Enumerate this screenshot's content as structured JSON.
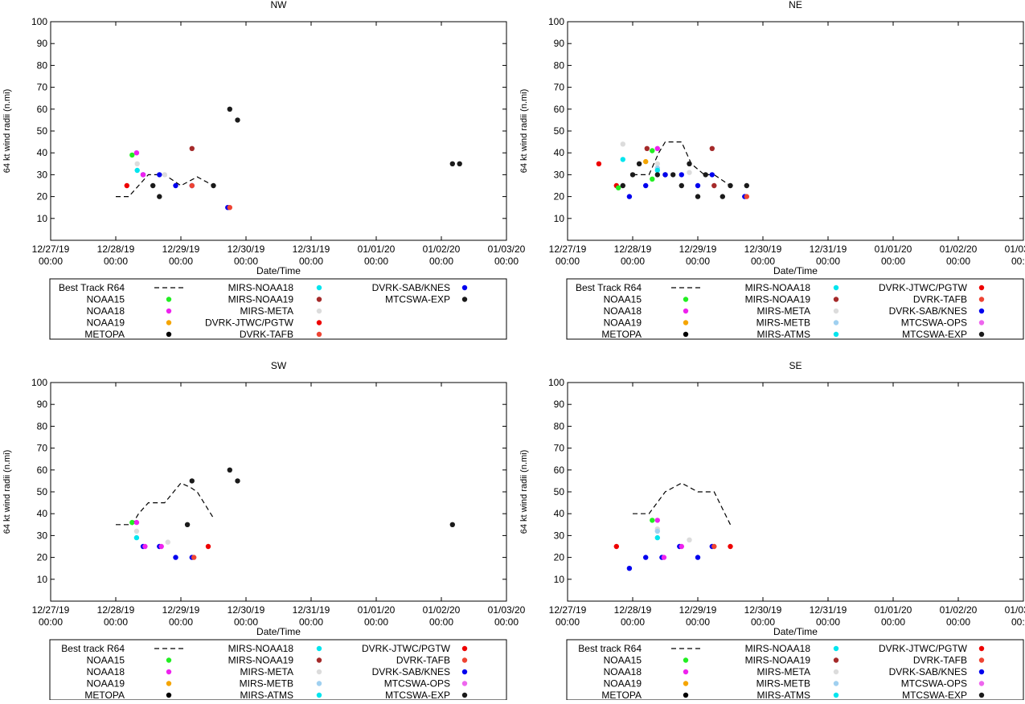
{
  "meta": {
    "ylabel": "64 kt wind radii (n.mi)",
    "xlabel": "Date/Time"
  },
  "x_ticks": [
    {
      "date": "12/27/19",
      "time": "00:00",
      "day": 0
    },
    {
      "date": "12/28/19",
      "time": "00:00",
      "day": 1
    },
    {
      "date": "12/29/19",
      "time": "00:00",
      "day": 2
    },
    {
      "date": "12/30/19",
      "time": "00:00",
      "day": 3
    },
    {
      "date": "12/31/19",
      "time": "00:00",
      "day": 4
    },
    {
      "date": "01/01/20",
      "time": "00:00",
      "day": 5
    },
    {
      "date": "01/02/20",
      "time": "00:00",
      "day": 6
    },
    {
      "date": "01/03/20",
      "time": "00:00",
      "day": 7
    }
  ],
  "chart_data": [
    {
      "type": "scatter",
      "title": "NW",
      "xlabel": "Date/Time",
      "ylabel": "64 kt wind radii (n.mi)",
      "xlim": [
        0,
        7
      ],
      "ylim": [
        0,
        100
      ],
      "yticks": [
        10,
        20,
        30,
        40,
        50,
        60,
        70,
        80,
        90,
        100
      ],
      "legend": [
        {
          "label": "Best Track R64",
          "kind": "line",
          "color": "#000000"
        },
        {
          "label": "NOAA15",
          "kind": "dot",
          "color": "#22ee22"
        },
        {
          "label": "NOAA18",
          "kind": "dot",
          "color": "#ee22ee"
        },
        {
          "label": "NOAA19",
          "kind": "dot",
          "color": "#f5a500"
        },
        {
          "label": "METOPA",
          "kind": "dot",
          "color": "#000000"
        },
        {
          "label": "MIRS-NOAA18",
          "kind": "dot",
          "color": "#00e5ee"
        },
        {
          "label": "MIRS-NOAA19",
          "kind": "dot",
          "color": "#a52a2a"
        },
        {
          "label": "MIRS-META",
          "kind": "dot",
          "color": "#dcdcdc"
        },
        {
          "label": "DVRK-JTWC/PGTW",
          "kind": "dot",
          "color": "#ee0000"
        },
        {
          "label": "DVRK-TAFB",
          "kind": "dot",
          "color": "#ee4433"
        },
        {
          "label": "DVRK-SAB/KNES",
          "kind": "dot",
          "color": "#0000ee"
        },
        {
          "label": "MTCSWA-EXP",
          "kind": "dot",
          "color": "#1a1a1a"
        }
      ],
      "best_track": [
        [
          1.0,
          20
        ],
        [
          1.2,
          20
        ],
        [
          1.35,
          25
        ],
        [
          1.5,
          30
        ],
        [
          1.75,
          30
        ],
        [
          2.0,
          25
        ],
        [
          2.25,
          29
        ],
        [
          2.5,
          25
        ]
      ],
      "points": [
        {
          "x": 1.25,
          "y": 39,
          "color": "#22ee22"
        },
        {
          "x": 1.32,
          "y": 40,
          "color": "#ee22ee"
        },
        {
          "x": 1.33,
          "y": 35,
          "color": "#dcdcdc"
        },
        {
          "x": 1.33,
          "y": 32,
          "color": "#00e5ee"
        },
        {
          "x": 1.17,
          "y": 25,
          "color": "#ee0000"
        },
        {
          "x": 1.42,
          "y": 30,
          "color": "#0000ee"
        },
        {
          "x": 1.42,
          "y": 30,
          "color": "#ee22ee"
        },
        {
          "x": 1.57,
          "y": 25,
          "color": "#1a1a1a"
        },
        {
          "x": 1.67,
          "y": 20,
          "color": "#1a1a1a"
        },
        {
          "x": 1.67,
          "y": 30,
          "color": "#0000ee"
        },
        {
          "x": 1.75,
          "y": 30,
          "color": "#dcdcdc"
        },
        {
          "x": 1.92,
          "y": 25,
          "color": "#0000ee"
        },
        {
          "x": 2.17,
          "y": 42,
          "color": "#a52a2a"
        },
        {
          "x": 2.17,
          "y": 25,
          "color": "#0000ee"
        },
        {
          "x": 2.17,
          "y": 25,
          "color": "#ee4433"
        },
        {
          "x": 2.5,
          "y": 25,
          "color": "#1a1a1a"
        },
        {
          "x": 2.72,
          "y": 15,
          "color": "#0000ee"
        },
        {
          "x": 2.75,
          "y": 15,
          "color": "#ee4433"
        },
        {
          "x": 2.75,
          "y": 60,
          "color": "#1a1a1a"
        },
        {
          "x": 2.87,
          "y": 55,
          "color": "#1a1a1a"
        },
        {
          "x": 6.17,
          "y": 35,
          "color": "#1a1a1a"
        },
        {
          "x": 6.28,
          "y": 35,
          "color": "#1a1a1a"
        }
      ]
    },
    {
      "type": "scatter",
      "title": "NE",
      "xlabel": "Date/Time",
      "ylabel": "64 kt wind radii (n.mi)",
      "xlim": [
        0,
        7
      ],
      "ylim": [
        0,
        100
      ],
      "yticks": [
        10,
        20,
        30,
        40,
        50,
        60,
        70,
        80,
        90,
        100
      ],
      "legend": [
        {
          "label": "Best Track R64",
          "kind": "line",
          "color": "#000000"
        },
        {
          "label": "NOAA15",
          "kind": "dot",
          "color": "#22ee22"
        },
        {
          "label": "NOAA18",
          "kind": "dot",
          "color": "#ee22ee"
        },
        {
          "label": "NOAA19",
          "kind": "dot",
          "color": "#f5a500"
        },
        {
          "label": "METOPA",
          "kind": "dot",
          "color": "#000000"
        },
        {
          "label": "MIRS-NOAA18",
          "kind": "dot",
          "color": "#00e5ee"
        },
        {
          "label": "MIRS-NOAA19",
          "kind": "dot",
          "color": "#a52a2a"
        },
        {
          "label": "MIRS-META",
          "kind": "dot",
          "color": "#dcdcdc"
        },
        {
          "label": "MIRS-METB",
          "kind": "dot",
          "color": "#a0d0f0"
        },
        {
          "label": "MIRS-ATMS",
          "kind": "dot",
          "color": "#00e5ee"
        },
        {
          "label": "DVRK-JTWC/PGTW",
          "kind": "dot",
          "color": "#ee0000"
        },
        {
          "label": "DVRK-TAFB",
          "kind": "dot",
          "color": "#ee4433"
        },
        {
          "label": "DVRK-SAB/KNES",
          "kind": "dot",
          "color": "#0000ee"
        },
        {
          "label": "MTCSWA-OPS",
          "kind": "dot",
          "color": "#ee66ee"
        },
        {
          "label": "MTCSWA-EXP",
          "kind": "dot",
          "color": "#1a1a1a"
        }
      ],
      "best_track": [
        [
          1.0,
          30
        ],
        [
          1.25,
          30
        ],
        [
          1.4,
          40
        ],
        [
          1.5,
          45
        ],
        [
          1.75,
          45
        ],
        [
          1.9,
          35
        ],
        [
          2.1,
          30
        ],
        [
          2.25,
          30
        ],
        [
          2.5,
          25
        ]
      ],
      "points": [
        {
          "x": 0.48,
          "y": 35,
          "color": "#ee0000"
        },
        {
          "x": 0.75,
          "y": 25,
          "color": "#ee0000"
        },
        {
          "x": 0.78,
          "y": 24,
          "color": "#22ee22"
        },
        {
          "x": 0.85,
          "y": 37,
          "color": "#00e5ee"
        },
        {
          "x": 0.85,
          "y": 44,
          "color": "#dcdcdc"
        },
        {
          "x": 0.85,
          "y": 25,
          "color": "#1a1a1a"
        },
        {
          "x": 0.95,
          "y": 20,
          "color": "#0000ee"
        },
        {
          "x": 1.0,
          "y": 30,
          "color": "#1a1a1a"
        },
        {
          "x": 1.1,
          "y": 35,
          "color": "#1a1a1a"
        },
        {
          "x": 1.2,
          "y": 36,
          "color": "#f5a500"
        },
        {
          "x": 1.22,
          "y": 42,
          "color": "#a52a2a"
        },
        {
          "x": 1.2,
          "y": 25,
          "color": "#0000ee"
        },
        {
          "x": 1.3,
          "y": 41,
          "color": "#22ee22"
        },
        {
          "x": 1.3,
          "y": 28,
          "color": "#22ee22"
        },
        {
          "x": 1.38,
          "y": 42,
          "color": "#ee22ee"
        },
        {
          "x": 1.38,
          "y": 35,
          "color": "#dcdcdc"
        },
        {
          "x": 1.38,
          "y": 33,
          "color": "#a0d0f0"
        },
        {
          "x": 1.38,
          "y": 32,
          "color": "#00e5ee"
        },
        {
          "x": 1.38,
          "y": 30,
          "color": "#1a1a1a"
        },
        {
          "x": 1.5,
          "y": 30,
          "color": "#1a1a1a"
        },
        {
          "x": 1.5,
          "y": 30,
          "color": "#0000ee"
        },
        {
          "x": 1.62,
          "y": 30,
          "color": "#1a1a1a"
        },
        {
          "x": 1.75,
          "y": 25,
          "color": "#1a1a1a"
        },
        {
          "x": 1.75,
          "y": 30,
          "color": "#0000ee"
        },
        {
          "x": 1.87,
          "y": 31,
          "color": "#dcdcdc"
        },
        {
          "x": 1.87,
          "y": 35,
          "color": "#1a1a1a"
        },
        {
          "x": 2.0,
          "y": 25,
          "color": "#0000ee"
        },
        {
          "x": 2.0,
          "y": 20,
          "color": "#1a1a1a"
        },
        {
          "x": 2.12,
          "y": 30,
          "color": "#1a1a1a"
        },
        {
          "x": 2.22,
          "y": 42,
          "color": "#a52a2a"
        },
        {
          "x": 2.22,
          "y": 30,
          "color": "#0000ee"
        },
        {
          "x": 2.25,
          "y": 25,
          "color": "#a52a2a"
        },
        {
          "x": 2.38,
          "y": 20,
          "color": "#1a1a1a"
        },
        {
          "x": 2.5,
          "y": 25,
          "color": "#1a1a1a"
        },
        {
          "x": 2.72,
          "y": 20,
          "color": "#0000ee"
        },
        {
          "x": 2.75,
          "y": 20,
          "color": "#ee4433"
        },
        {
          "x": 2.75,
          "y": 25,
          "color": "#1a1a1a"
        }
      ]
    },
    {
      "type": "scatter",
      "title": "SW",
      "xlabel": "Date/Time",
      "ylabel": "64 kt wind radii (n.mi)",
      "xlim": [
        0,
        7
      ],
      "ylim": [
        0,
        100
      ],
      "yticks": [
        10,
        20,
        30,
        40,
        50,
        60,
        70,
        80,
        90,
        100
      ],
      "legend": [
        {
          "label": "Best track R64",
          "kind": "line",
          "color": "#000000"
        },
        {
          "label": "NOAA15",
          "kind": "dot",
          "color": "#22ee22"
        },
        {
          "label": "NOAA18",
          "kind": "dot",
          "color": "#ee22ee"
        },
        {
          "label": "NOAA19",
          "kind": "dot",
          "color": "#f5a500"
        },
        {
          "label": "METOPA",
          "kind": "dot",
          "color": "#000000"
        },
        {
          "label": "MIRS-NOAA18",
          "kind": "dot",
          "color": "#00e5ee"
        },
        {
          "label": "MIRS-NOAA19",
          "kind": "dot",
          "color": "#a52a2a"
        },
        {
          "label": "MIRS-META",
          "kind": "dot",
          "color": "#dcdcdc"
        },
        {
          "label": "MIRS-METB",
          "kind": "dot",
          "color": "#a0d0f0"
        },
        {
          "label": "MIRS-ATMS",
          "kind": "dot",
          "color": "#00e5ee"
        },
        {
          "label": "DVRK-JTWC/PGTW",
          "kind": "dot",
          "color": "#ee0000"
        },
        {
          "label": "DVRK-TAFB",
          "kind": "dot",
          "color": "#ee4433"
        },
        {
          "label": "DVRK-SAB/KNES",
          "kind": "dot",
          "color": "#0000ee"
        },
        {
          "label": "MTCSWA-OPS",
          "kind": "dot",
          "color": "#ee66ee"
        },
        {
          "label": "MTCSWA-EXP",
          "kind": "dot",
          "color": "#1a1a1a"
        }
      ],
      "best_track": [
        [
          1.0,
          35
        ],
        [
          1.25,
          35
        ],
        [
          1.35,
          40
        ],
        [
          1.5,
          45
        ],
        [
          1.75,
          45
        ],
        [
          2.0,
          54
        ],
        [
          2.15,
          52
        ],
        [
          2.25,
          50
        ],
        [
          2.5,
          38
        ]
      ],
      "points": [
        {
          "x": 1.25,
          "y": 36,
          "color": "#22ee22"
        },
        {
          "x": 1.32,
          "y": 36,
          "color": "#ee22ee"
        },
        {
          "x": 1.32,
          "y": 32,
          "color": "#dcdcdc"
        },
        {
          "x": 1.32,
          "y": 29,
          "color": "#00e5ee"
        },
        {
          "x": 1.42,
          "y": 25,
          "color": "#0000ee"
        },
        {
          "x": 1.45,
          "y": 25,
          "color": "#ee22ee"
        },
        {
          "x": 1.67,
          "y": 25,
          "color": "#0000ee"
        },
        {
          "x": 1.7,
          "y": 25,
          "color": "#ee22ee"
        },
        {
          "x": 1.8,
          "y": 27,
          "color": "#dcdcdc"
        },
        {
          "x": 1.92,
          "y": 20,
          "color": "#0000ee"
        },
        {
          "x": 2.1,
          "y": 35,
          "color": "#1a1a1a"
        },
        {
          "x": 2.17,
          "y": 55,
          "color": "#1a1a1a"
        },
        {
          "x": 2.17,
          "y": 20,
          "color": "#0000ee"
        },
        {
          "x": 2.2,
          "y": 20,
          "color": "#ee4433"
        },
        {
          "x": 2.42,
          "y": 25,
          "color": "#ee0000"
        },
        {
          "x": 2.75,
          "y": 60,
          "color": "#1a1a1a"
        },
        {
          "x": 2.87,
          "y": 55,
          "color": "#1a1a1a"
        },
        {
          "x": 6.17,
          "y": 35,
          "color": "#1a1a1a"
        }
      ]
    },
    {
      "type": "scatter",
      "title": "SE",
      "xlabel": "Date/Time",
      "ylabel": "64 kt wind radii (n.mi)",
      "xlim": [
        0,
        7
      ],
      "ylim": [
        0,
        100
      ],
      "yticks": [
        10,
        20,
        30,
        40,
        50,
        60,
        70,
        80,
        90,
        100
      ],
      "legend": [
        {
          "label": "Best track R64",
          "kind": "line",
          "color": "#000000"
        },
        {
          "label": "NOAA15",
          "kind": "dot",
          "color": "#22ee22"
        },
        {
          "label": "NOAA18",
          "kind": "dot",
          "color": "#ee22ee"
        },
        {
          "label": "NOAA19",
          "kind": "dot",
          "color": "#f5a500"
        },
        {
          "label": "METOPA",
          "kind": "dot",
          "color": "#000000"
        },
        {
          "label": "MIRS-NOAA18",
          "kind": "dot",
          "color": "#00e5ee"
        },
        {
          "label": "MIRS-NOAA19",
          "kind": "dot",
          "color": "#a52a2a"
        },
        {
          "label": "MIRS-META",
          "kind": "dot",
          "color": "#dcdcdc"
        },
        {
          "label": "MIRS-METB",
          "kind": "dot",
          "color": "#a0d0f0"
        },
        {
          "label": "MIRS-ATMS",
          "kind": "dot",
          "color": "#00e5ee"
        },
        {
          "label": "DVRK-JTWC/PGTW",
          "kind": "dot",
          "color": "#ee0000"
        },
        {
          "label": "DVRK-TAFB",
          "kind": "dot",
          "color": "#ee4433"
        },
        {
          "label": "DVRK-SAB/KNES",
          "kind": "dot",
          "color": "#0000ee"
        },
        {
          "label": "MTCSWA-OPS",
          "kind": "dot",
          "color": "#ee66ee"
        },
        {
          "label": "MTCSWA-EXP",
          "kind": "dot",
          "color": "#1a1a1a"
        }
      ],
      "best_track": [
        [
          1.0,
          40
        ],
        [
          1.25,
          40
        ],
        [
          1.5,
          50
        ],
        [
          1.75,
          54
        ],
        [
          2.0,
          50
        ],
        [
          2.25,
          50
        ],
        [
          2.5,
          35
        ]
      ],
      "points": [
        {
          "x": 0.75,
          "y": 25,
          "color": "#ee0000"
        },
        {
          "x": 0.95,
          "y": 15,
          "color": "#0000ee"
        },
        {
          "x": 1.2,
          "y": 20,
          "color": "#0000ee"
        },
        {
          "x": 1.3,
          "y": 37,
          "color": "#22ee22"
        },
        {
          "x": 1.38,
          "y": 37,
          "color": "#ee22ee"
        },
        {
          "x": 1.38,
          "y": 33,
          "color": "#dcdcdc"
        },
        {
          "x": 1.38,
          "y": 32,
          "color": "#a0d0f0"
        },
        {
          "x": 1.38,
          "y": 29,
          "color": "#00e5ee"
        },
        {
          "x": 1.45,
          "y": 20,
          "color": "#0000ee"
        },
        {
          "x": 1.48,
          "y": 20,
          "color": "#ee22ee"
        },
        {
          "x": 1.72,
          "y": 25,
          "color": "#0000ee"
        },
        {
          "x": 1.75,
          "y": 25,
          "color": "#ee22ee"
        },
        {
          "x": 1.87,
          "y": 28,
          "color": "#dcdcdc"
        },
        {
          "x": 2.0,
          "y": 20,
          "color": "#0000ee"
        },
        {
          "x": 2.22,
          "y": 25,
          "color": "#0000ee"
        },
        {
          "x": 2.25,
          "y": 25,
          "color": "#ee4433"
        },
        {
          "x": 2.5,
          "y": 25,
          "color": "#ee0000"
        }
      ]
    }
  ]
}
